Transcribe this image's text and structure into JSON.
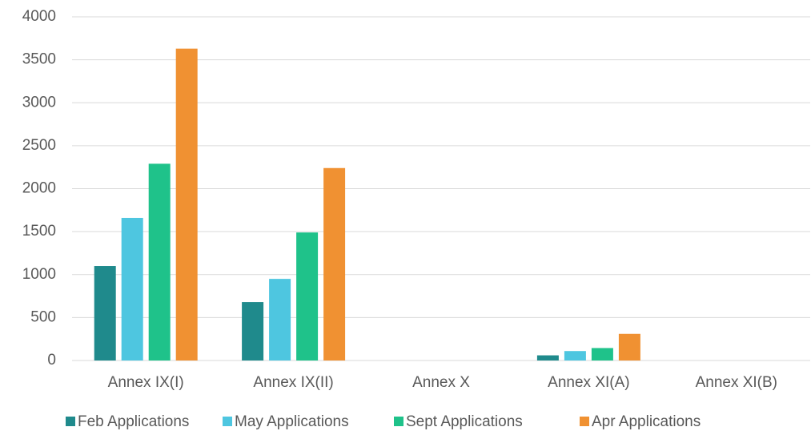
{
  "chart_data": {
    "type": "bar",
    "categories": [
      "Annex IX(I)",
      "Annex IX(II)",
      "Annex X",
      "Annex XI(A)",
      "Annex XI(B)"
    ],
    "series": [
      {
        "name": "Feb Applications",
        "color": "#1f8a8c",
        "values": [
          1100,
          680,
          0,
          60,
          0
        ]
      },
      {
        "name": "May Applications",
        "color": "#4ec6e0",
        "values": [
          1660,
          950,
          0,
          110,
          0
        ]
      },
      {
        "name": "Sept Applications",
        "color": "#1fc28a",
        "values": [
          2290,
          1490,
          0,
          145,
          0
        ]
      },
      {
        "name": "Apr Applications",
        "color": "#f09132",
        "values": [
          3630,
          2240,
          0,
          310,
          0
        ]
      }
    ],
    "ylim": [
      0,
      4000
    ],
    "yticks": [
      0,
      500,
      1000,
      1500,
      2000,
      2500,
      3000,
      3500,
      4000
    ],
    "grid": true,
    "legend": "bottom"
  }
}
